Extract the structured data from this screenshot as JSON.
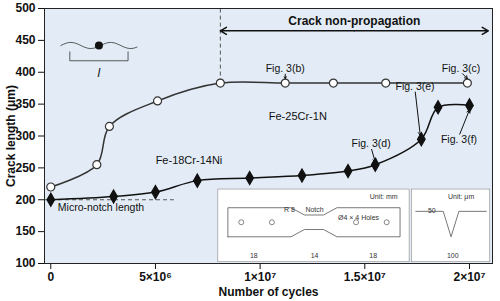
{
  "chart_data": {
    "type": "line",
    "xlabel": "Number of cycles",
    "ylabel": "Crack length (μm)",
    "xlim": [
      -300000,
      21100000
    ],
    "ylim": [
      100,
      500
    ],
    "xticks": [
      0,
      {
        "value": 5000000,
        "label": "5×10⁶"
      },
      {
        "value": 10000000,
        "label": "1×10⁷"
      },
      {
        "value": 15000000,
        "label": "1.5×10⁷"
      },
      {
        "value": 20000000,
        "label": "2×10⁷"
      }
    ],
    "yticks": [
      100,
      150,
      200,
      250,
      300,
      350,
      400,
      450,
      500
    ],
    "grid": false,
    "series": [
      {
        "name": "Fe-25Cr-1N",
        "color": "#333333",
        "marker": "circle-open",
        "line_style": "solid",
        "label_at": [
          11800000,
          330
        ],
        "x": [
          0,
          2200000,
          2800000,
          5100000,
          8100000,
          11200000,
          13500000,
          16000000,
          19900000
        ],
        "values": [
          220,
          255,
          315,
          355,
          383,
          383,
          383,
          383,
          383
        ]
      },
      {
        "name": "Fe-18Cr-14Ni",
        "color": "#111111",
        "marker": "diamond",
        "line_style": "solid",
        "label_at": [
          6600000,
          262
        ],
        "x": [
          0,
          3000000,
          5000000,
          7000000,
          9500000,
          12000000,
          14200000,
          15500000,
          17700000,
          18500000,
          20000000
        ],
        "values": [
          200,
          205,
          212,
          230,
          234,
          238,
          245,
          255,
          295,
          345,
          348
        ]
      }
    ],
    "reference_lines": [
      {
        "orientation": "horizontal",
        "y": 200,
        "x_to": 5900000,
        "line_style": "dashed"
      },
      {
        "orientation": "vertical",
        "x": 8100000,
        "y_from": 383,
        "line_style": "dashed"
      }
    ],
    "span": {
      "text": "Crack non-propagation",
      "x_from": 8100000,
      "x_to": 20900000,
      "y": 465
    },
    "annotations": [
      {
        "text": "Micro-notch length",
        "x": 2400000,
        "y": 188
      },
      {
        "text": "l",
        "x": 2300000,
        "y": 398
      },
      {
        "text": "Fig. 3(b)",
        "x": 11200000,
        "y": 400,
        "arrow_to": [
          11200000,
          390
        ]
      },
      {
        "text": "Fig. 3(c)",
        "x": 19600000,
        "y": 400,
        "arrow_to": [
          19900000,
          390
        ]
      },
      {
        "text": "Fig. 3(d)",
        "x": 15300000,
        "y": 282,
        "arrow_to": [
          15500000,
          259
        ]
      },
      {
        "text": "Fig. 3(e)",
        "x": 17400000,
        "y": 372,
        "arrow_to": [
          17650000,
          301
        ]
      },
      {
        "text": "Fig. 3(f)",
        "x": 19500000,
        "y": 300,
        "arrow_to": [
          20000000,
          341
        ]
      }
    ],
    "inset_texts": [
      {
        "text": "Unit: mm",
        "x": 15900000,
        "y": 205
      },
      {
        "text": "Unit: μm",
        "x": 19600000,
        "y": 205
      },
      {
        "text": "Notch",
        "x": 12600000,
        "y": 185
      },
      {
        "text": "R 8",
        "x": 11400000,
        "y": 185
      },
      {
        "text": "Ø4 × 4 Holes",
        "x": 14700000,
        "y": 172
      },
      {
        "text": "18",
        "x": 9700000,
        "y": 112
      },
      {
        "text": "14",
        "x": 12600000,
        "y": 112
      },
      {
        "text": "18",
        "x": 15400000,
        "y": 112
      },
      {
        "text": "100",
        "x": 19200000,
        "y": 112
      },
      {
        "text": "50",
        "x": 18200000,
        "y": 182
      }
    ]
  }
}
